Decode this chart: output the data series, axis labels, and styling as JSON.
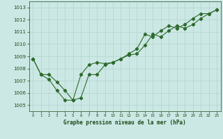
{
  "x": [
    0,
    1,
    2,
    3,
    4,
    5,
    6,
    7,
    8,
    9,
    10,
    11,
    12,
    13,
    14,
    15,
    16,
    17,
    18,
    19,
    20,
    21,
    22,
    23
  ],
  "series1": [
    1008.8,
    1007.5,
    1007.5,
    1006.9,
    1006.2,
    1005.4,
    1005.6,
    1007.5,
    1007.5,
    1008.3,
    1008.5,
    1008.8,
    1009.1,
    1009.2,
    1009.9,
    1010.8,
    1010.6,
    1011.1,
    1011.5,
    1011.3,
    1011.6,
    1012.1,
    1012.5,
    1012.8
  ],
  "series2": [
    1008.8,
    1007.5,
    1007.1,
    1006.2,
    1005.4,
    1005.4,
    1007.5,
    1008.3,
    1008.5,
    1008.4,
    1008.5,
    1008.8,
    1009.2,
    1009.6,
    1010.8,
    1010.6,
    1011.1,
    1011.5,
    1011.3,
    1011.6,
    1012.1,
    1012.5,
    1012.5,
    1012.8
  ],
  "line_color": "#2d6a2d",
  "bg_color": "#cce8e4",
  "grid_color": "#aacfc9",
  "axis_label_color": "#1a4a1a",
  "title": "Graphe pression niveau de la mer (hPa)",
  "ylim": [
    1004.5,
    1013.5
  ],
  "yticks": [
    1005,
    1006,
    1007,
    1008,
    1009,
    1010,
    1011,
    1012,
    1013
  ],
  "xlim": [
    -0.5,
    23.5
  ]
}
